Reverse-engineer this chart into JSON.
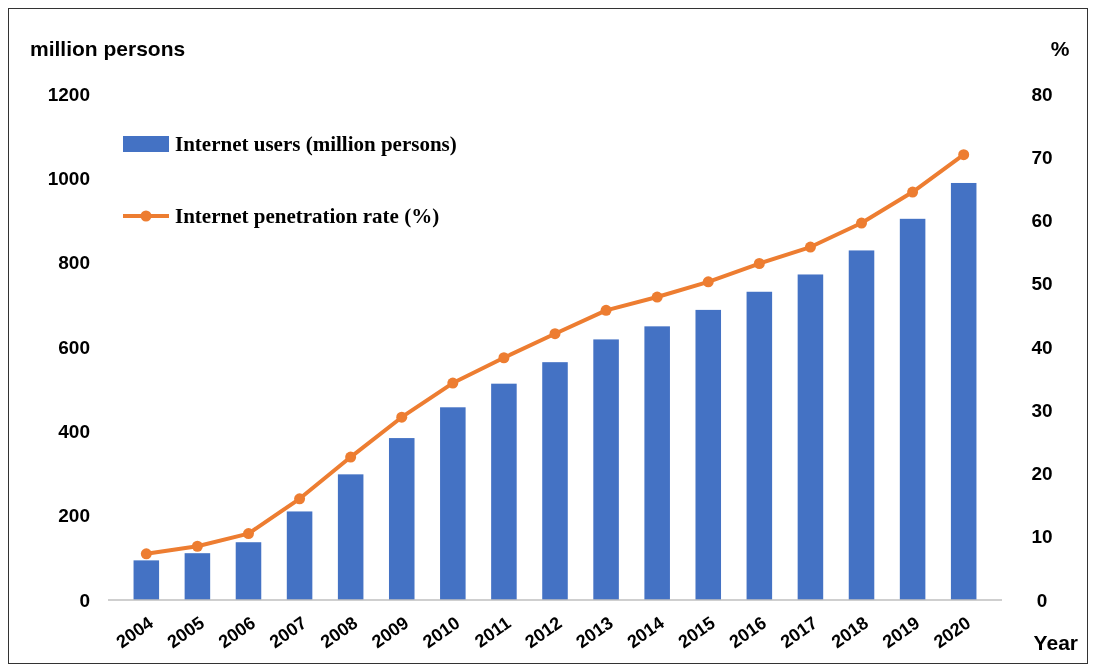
{
  "chart_data": {
    "type": "bar",
    "xlabel": "Year",
    "ylabel": "million persons",
    "y2label": "%",
    "categories": [
      "2004",
      "2005",
      "2006",
      "2007",
      "2008",
      "2009",
      "2010",
      "2011",
      "2012",
      "2013",
      "2014",
      "2015",
      "2016",
      "2017",
      "2018",
      "2019",
      "2020"
    ],
    "series": [
      {
        "name": "Internet users (million persons)",
        "color": "#4472c4",
        "values": [
          94,
          111,
          137,
          210,
          298,
          384,
          457,
          513,
          564,
          618,
          649,
          688,
          731,
          772,
          829,
          904,
          989
        ]
      },
      {
        "name": "Internet penetration rate (%)",
        "type": "line",
        "axis": "y2",
        "color": "#ed7d31",
        "marker": "circle",
        "values": [
          7.3,
          8.5,
          10.5,
          16.0,
          22.6,
          28.9,
          34.3,
          38.3,
          42.1,
          45.8,
          47.9,
          50.3,
          53.2,
          55.8,
          59.6,
          64.5,
          70.4
        ]
      }
    ],
    "ylim": [
      0,
      1200
    ],
    "yticks": [
      0,
      200,
      400,
      600,
      800,
      1000,
      1200
    ],
    "y2lim": [
      0,
      80
    ],
    "y2ticks": [
      0,
      10,
      20,
      30,
      40,
      50,
      60,
      70,
      80
    ],
    "legend": "top left",
    "grid": false
  }
}
